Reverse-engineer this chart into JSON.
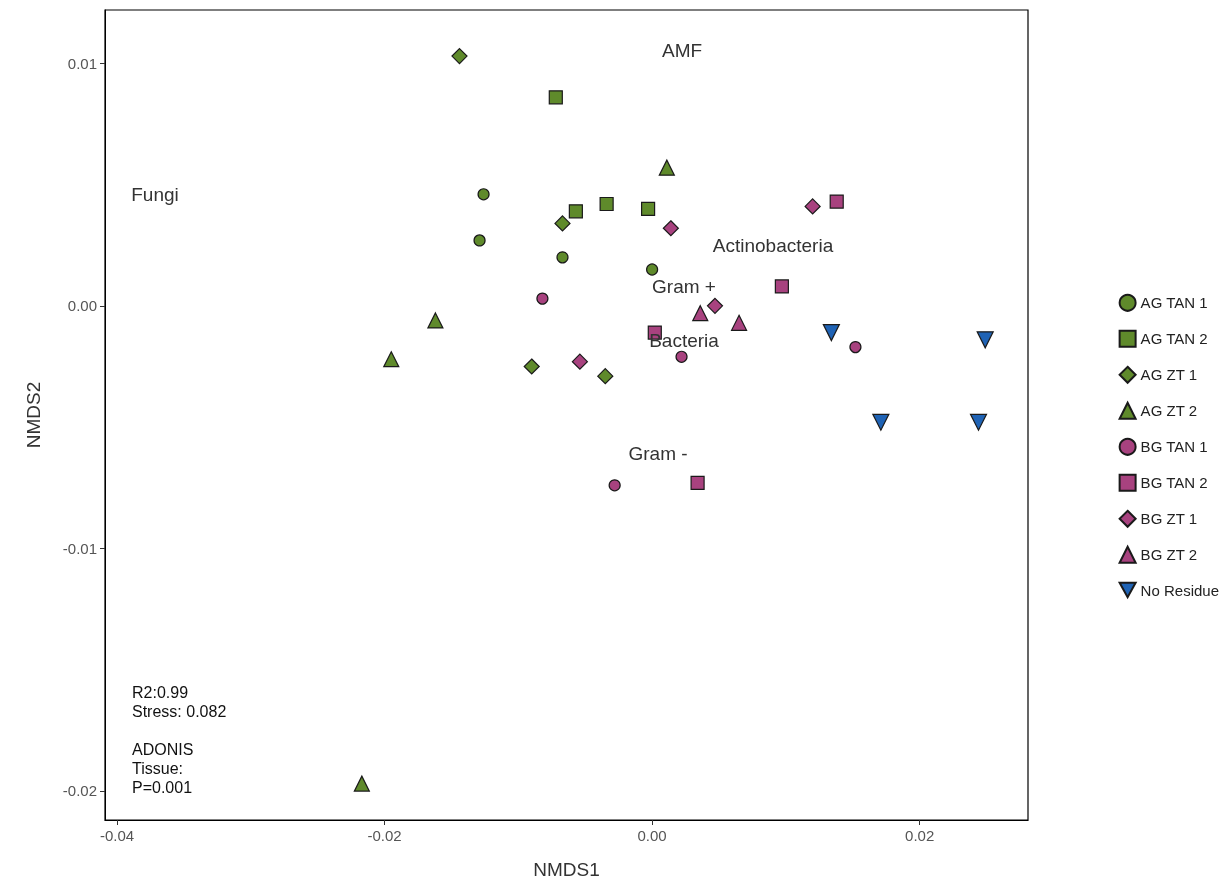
{
  "chart_data": {
    "type": "scatter",
    "xlabel": "NMDS1",
    "ylabel": "NMDS2",
    "xlim": [
      -0.0409,
      0.0281
    ],
    "ylim": [
      -0.0212,
      0.0122
    ],
    "xticks": [
      -0.04,
      -0.02,
      {
        "value": 0,
        "label": "0.00"
      },
      0.02
    ],
    "yticks": [
      -0.02,
      -0.01,
      {
        "value": 0,
        "label": "0.00"
      },
      0.01
    ],
    "legend": "right",
    "series": [
      {
        "name": "AG TAN 1",
        "color": "#5f8a2b",
        "marker": "circle",
        "x": [
          -0.0126,
          -0.0129,
          -0.0067,
          0.0
        ],
        "values": [
          0.0046,
          0.0027,
          0.002,
          0.0015
        ]
      },
      {
        "name": "AG TAN 2",
        "color": "#5f8a2b",
        "marker": "square",
        "x": [
          -0.0072,
          -0.0057,
          -0.0034,
          -0.0003
        ],
        "values": [
          0.0086,
          0.0039,
          0.0042,
          0.004
        ]
      },
      {
        "name": "AG ZT 1",
        "color": "#5f8a2b",
        "marker": "diamond",
        "x": [
          -0.0144,
          -0.0067,
          -0.009,
          -0.0035
        ],
        "values": [
          0.0103,
          0.0034,
          -0.0025,
          -0.0029
        ]
      },
      {
        "name": "AG ZT 2",
        "color": "#5f8a2b",
        "marker": "triangle",
        "x": [
          0.0011,
          -0.0162,
          -0.0195,
          -0.0217
        ],
        "values": [
          0.0057,
          -0.0006,
          -0.0022,
          -0.0197
        ]
      },
      {
        "name": "BG TAN 1",
        "color": "#a8427f",
        "marker": "circle",
        "x": [
          -0.0082,
          0.0022,
          0.0152,
          -0.0028
        ],
        "values": [
          0.0003,
          -0.0021,
          -0.0017,
          -0.0074
        ]
      },
      {
        "name": "BG TAN 2",
        "color": "#a8427f",
        "marker": "square",
        "x": [
          0.0138,
          0.0097,
          0.0002,
          0.0034
        ],
        "values": [
          0.0043,
          0.0008,
          -0.0011,
          -0.0073
        ]
      },
      {
        "name": "BG ZT 1",
        "color": "#a8427f",
        "marker": "diamond",
        "x": [
          0.012,
          0.0014,
          0.0047,
          -0.0054
        ],
        "values": [
          0.0041,
          0.0032,
          0.0,
          -0.0023
        ]
      },
      {
        "name": "BG ZT 2",
        "color": "#a8427f",
        "marker": "triangle",
        "x": [
          0.0036,
          0.0065
        ],
        "values": [
          -0.0003,
          -0.0007
        ]
      },
      {
        "name": "No Residue",
        "color": "#1f63b5",
        "marker": "triangle-down",
        "x": [
          0.0134,
          0.0249,
          0.0171,
          0.0244
        ],
        "values": [
          -0.0011,
          -0.0014,
          -0.0048,
          -0.0048
        ]
      }
    ],
    "annotations": [
      "AMF",
      "Fungi",
      "Actinobacteria",
      "Gram +",
      "Bacteria",
      "Gram -",
      "R2:0.99\nStress: 0.082\n\nADONIS\nTissue:\nP=0.001"
    ]
  }
}
